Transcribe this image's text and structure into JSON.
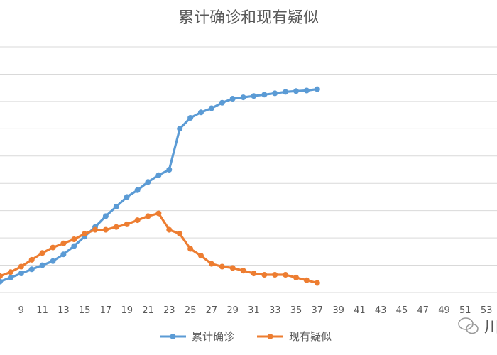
{
  "chart_data": {
    "type": "line",
    "title": "累计确诊和现有疑似",
    "xlabel": "",
    "ylabel": "",
    "grid": true,
    "legend_position": "bottom",
    "x_ticks": [
      9,
      11,
      13,
      15,
      17,
      19,
      21,
      23,
      25,
      27,
      29,
      31,
      33,
      35,
      37,
      39,
      41,
      43,
      45,
      47,
      49,
      51,
      53
    ],
    "x": [
      7,
      8,
      9,
      10,
      11,
      12,
      13,
      14,
      15,
      16,
      17,
      18,
      19,
      20,
      21,
      22,
      23,
      24,
      25,
      26,
      27,
      28,
      29,
      30,
      31,
      32,
      33,
      34,
      35,
      36,
      37
    ],
    "xlim": [
      7,
      54
    ],
    "ylim": [
      0,
      90
    ],
    "series": [
      {
        "name": "累计确诊",
        "color": "#5b9bd5",
        "values": [
          4,
          5.5,
          7,
          8.5,
          10,
          11.5,
          14,
          17,
          20.5,
          24,
          28,
          31.5,
          35,
          37.5,
          40.5,
          43,
          45,
          60,
          64,
          66,
          67.5,
          69.5,
          71,
          71.5,
          72,
          72.5,
          73,
          73.5,
          73.8,
          74,
          74.5
        ]
      },
      {
        "name": "现有疑似",
        "color": "#ed7d31",
        "values": [
          6,
          7.5,
          9.5,
          12,
          14.5,
          16.5,
          18,
          19.5,
          21.5,
          23,
          23,
          24,
          25,
          26.5,
          28,
          29,
          23,
          21.5,
          16,
          13.5,
          10.5,
          9.5,
          9,
          8,
          7,
          6.5,
          6.5,
          6.5,
          5.5,
          4.5,
          3.5
        ]
      }
    ]
  },
  "watermark": {
    "text": "川"
  }
}
